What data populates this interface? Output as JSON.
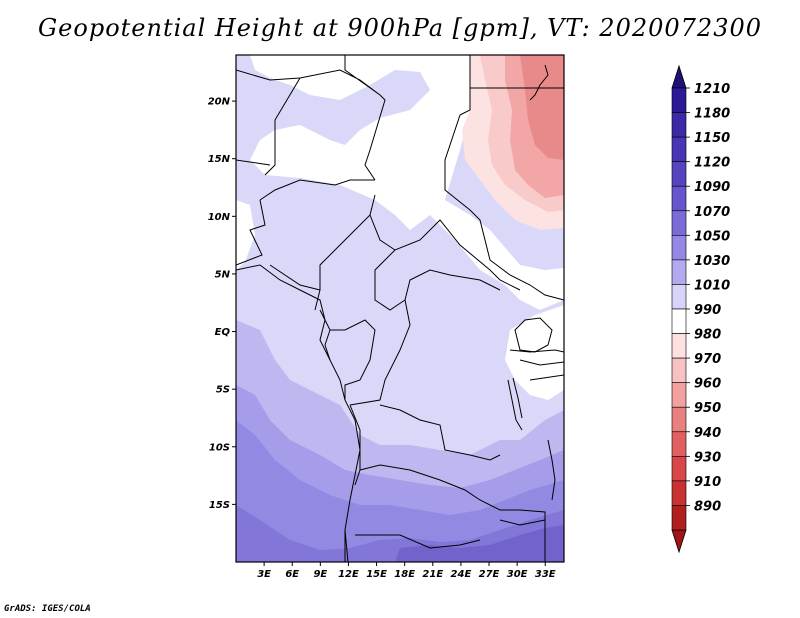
{
  "title": "Geopotential Height at 900hPa [gpm], VT: 2020072300",
  "credit": "GrADS: IGES/COLA",
  "map": {
    "lon_range": [
      0,
      35
    ],
    "lat_range": [
      -20,
      24
    ],
    "lat_ticks": [
      {
        "value": 20,
        "label": "20N"
      },
      {
        "value": 15,
        "label": "15N"
      },
      {
        "value": 10,
        "label": "10N"
      },
      {
        "value": 5,
        "label": "5N"
      },
      {
        "value": 0,
        "label": "EQ"
      },
      {
        "value": -5,
        "label": "5S"
      },
      {
        "value": -10,
        "label": "10S"
      },
      {
        "value": -15,
        "label": "15S"
      }
    ],
    "lon_ticks": [
      {
        "value": 3,
        "label": "3E"
      },
      {
        "value": 6,
        "label": "6E"
      },
      {
        "value": 9,
        "label": "9E"
      },
      {
        "value": 12,
        "label": "12E"
      },
      {
        "value": 15,
        "label": "15E"
      },
      {
        "value": 18,
        "label": "18E"
      },
      {
        "value": 21,
        "label": "21E"
      },
      {
        "value": 24,
        "label": "24E"
      },
      {
        "value": 27,
        "label": "27E"
      },
      {
        "value": 30,
        "label": "30E"
      },
      {
        "value": 33,
        "label": "33E"
      }
    ]
  },
  "colorbar": {
    "levels": [
      {
        "label": "1210",
        "color": "#2a1a96"
      },
      {
        "label": "1180",
        "color": "#3a2aa8"
      },
      {
        "label": "1150",
        "color": "#4636b4"
      },
      {
        "label": "1120",
        "color": "#5444c0"
      },
      {
        "label": "1090",
        "color": "#6655cc"
      },
      {
        "label": "1070",
        "color": "#7a6cd8"
      },
      {
        "label": "1050",
        "color": "#9488e4"
      },
      {
        "label": "1030",
        "color": "#b2aaee"
      },
      {
        "label": "1010",
        "color": "#d6d4f8"
      },
      {
        "label": "990",
        "color": "#ffffff"
      },
      {
        "label": "980",
        "color": "#fde0e0"
      },
      {
        "label": "970",
        "color": "#f8c2c2"
      },
      {
        "label": "960",
        "color": "#f2a0a0"
      },
      {
        "label": "950",
        "color": "#e88080"
      },
      {
        "label": "940",
        "color": "#e06060"
      },
      {
        "label": "930",
        "color": "#d84848"
      },
      {
        "label": "910",
        "color": "#c83232"
      },
      {
        "label": "890",
        "color": "#b01e1e"
      }
    ],
    "top_arrow_color": "#1e1078",
    "bottom_arrow_color": "#a01414"
  }
}
